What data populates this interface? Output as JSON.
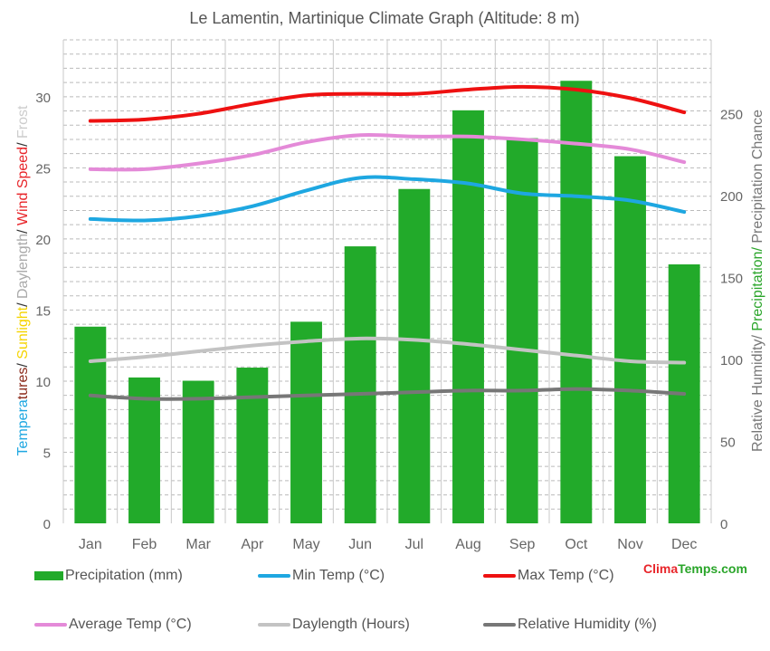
{
  "chart_data": {
    "type": "bar+line",
    "title": "Le Lamentin, Martinique Climate Graph (Altitude: 8 m)",
    "categories": [
      "Jan",
      "Feb",
      "Mar",
      "Apr",
      "May",
      "Jun",
      "Jul",
      "Aug",
      "Sep",
      "Oct",
      "Nov",
      "Dec"
    ],
    "left_axis": {
      "label_parts": [
        {
          "text": "Temperatures",
          "color": "#1ea7e1",
          "split": [
            [
              "Tempera",
              "#1ea7e1"
            ],
            [
              "tures",
              "#8b2a1a"
            ]
          ]
        },
        {
          "text": "/ ",
          "color": "#333333"
        },
        {
          "text": "Sunlight",
          "color": "#f5d400"
        },
        {
          "text": "/ ",
          "color": "#333333"
        },
        {
          "text": "Daylength",
          "color": "#aaaaaa"
        },
        {
          "text": "/ ",
          "color": "#333333"
        },
        {
          "text": "Wind Speed",
          "color": "#e8252a"
        },
        {
          "text": "/ ",
          "color": "#333333"
        },
        {
          "text": "Frost",
          "color": "#cccccc"
        }
      ],
      "ylim": [
        0,
        34
      ],
      "ticks": [
        0,
        5,
        10,
        15,
        20,
        25,
        30
      ]
    },
    "right_axis": {
      "label_parts": [
        {
          "text": "Relative Humidity/ ",
          "color": "#777777"
        },
        {
          "text": "Precipitation/ ",
          "color": "#2aa52a"
        },
        {
          "text": "Precipitation Chance",
          "color": "#777777"
        }
      ],
      "ylim": [
        0,
        295
      ],
      "ticks": [
        0,
        50,
        100,
        150,
        200,
        250
      ]
    },
    "bars": {
      "name": "Precipitation (mm)",
      "color": "#22aa2a",
      "axis": "right",
      "values": [
        120,
        89,
        87,
        95,
        123,
        169,
        204,
        252,
        235,
        270,
        224,
        158
      ]
    },
    "series": [
      {
        "name": "Min Temp (°C)",
        "color": "#1ea7e1",
        "axis": "left",
        "values": [
          21.4,
          21.3,
          21.6,
          22.3,
          23.4,
          24.3,
          24.2,
          23.9,
          23.2,
          23.0,
          22.7,
          21.9
        ]
      },
      {
        "name": "Max Temp (°C)",
        "color": "#ee1111",
        "axis": "left",
        "values": [
          28.3,
          28.4,
          28.8,
          29.5,
          30.1,
          30.2,
          30.2,
          30.5,
          30.7,
          30.5,
          29.9,
          28.9
        ]
      },
      {
        "name": "Average Temp (°C)",
        "color": "#e48ad8",
        "axis": "left",
        "values": [
          24.9,
          24.9,
          25.3,
          25.9,
          26.8,
          27.3,
          27.2,
          27.2,
          27.0,
          26.7,
          26.3,
          25.4
        ]
      },
      {
        "name": "Daylength (Hours)",
        "color": "#c3c3c3",
        "axis": "left",
        "values": [
          11.4,
          11.7,
          12.1,
          12.5,
          12.8,
          13.0,
          12.9,
          12.6,
          12.2,
          11.8,
          11.4,
          11.3
        ]
      },
      {
        "name": "Relative Humidity (%)",
        "color": "#777777",
        "axis": "right",
        "values": [
          78,
          76,
          76,
          77,
          78,
          79,
          80,
          81,
          81,
          82,
          81,
          79
        ]
      }
    ],
    "grid": true
  },
  "legend": {
    "precip": "Precipitation (mm)",
    "min": "Min Temp (°C)",
    "max": "Max Temp (°C)",
    "avg": "Average Temp (°C)",
    "day": "Daylength (Hours)",
    "hum": "Relative Humidity (%)"
  },
  "brand": {
    "part1": "Clima",
    "part2": "Temps.com"
  }
}
